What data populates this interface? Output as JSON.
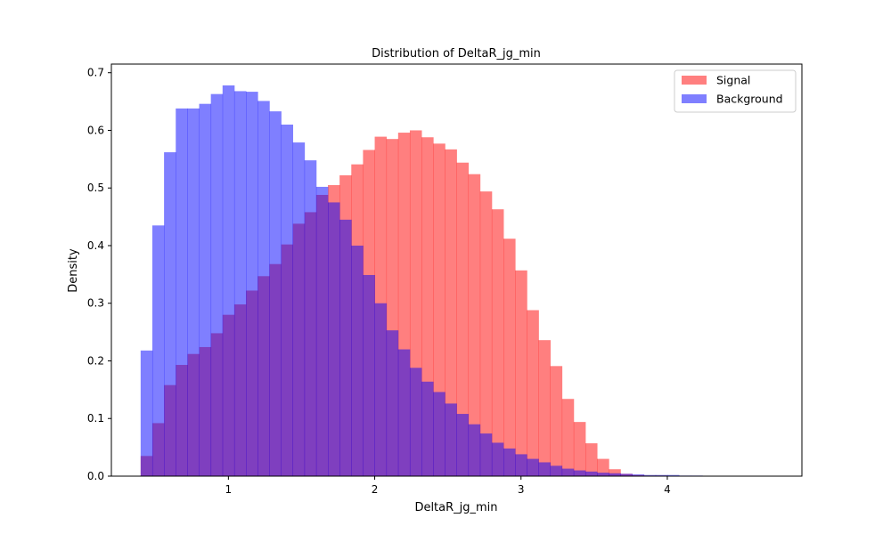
{
  "chart_data": {
    "type": "histogram",
    "title": "Distribution of DeltaR_jg_min",
    "xlabel": "DeltaR_jg_min",
    "ylabel": "Density",
    "xlim": [
      0.2,
      4.92
    ],
    "ylim": [
      0,
      0.715
    ],
    "x_ticks": [
      1,
      2,
      3,
      4
    ],
    "y_ticks": [
      0.0,
      0.1,
      0.2,
      0.3,
      0.4,
      0.5,
      0.6,
      0.7
    ],
    "legend_position": "top-right",
    "bin_start": 0.4,
    "bin_width": 0.08,
    "series": [
      {
        "name": "Signal",
        "color": "#ff0000",
        "alpha": 0.5,
        "values": [
          0.035,
          0.092,
          0.158,
          0.193,
          0.212,
          0.224,
          0.248,
          0.28,
          0.298,
          0.322,
          0.347,
          0.368,
          0.402,
          0.438,
          0.458,
          0.488,
          0.505,
          0.522,
          0.541,
          0.566,
          0.589,
          0.585,
          0.596,
          0.6,
          0.588,
          0.577,
          0.567,
          0.544,
          0.524,
          0.494,
          0.463,
          0.412,
          0.357,
          0.288,
          0.236,
          0.191,
          0.134,
          0.094,
          0.057,
          0.03,
          0.012,
          0.004,
          0.002,
          0.001,
          0.001,
          0.0,
          0.0,
          0.0,
          0.0,
          0.0,
          0.0,
          0.0,
          0.0,
          0.0,
          0.0,
          0.0,
          0.0,
          0.0
        ]
      },
      {
        "name": "Background",
        "color": "#0000ff",
        "alpha": 0.5,
        "values": [
          0.218,
          0.435,
          0.562,
          0.638,
          0.638,
          0.646,
          0.663,
          0.678,
          0.668,
          0.667,
          0.651,
          0.633,
          0.61,
          0.579,
          0.548,
          0.502,
          0.475,
          0.445,
          0.4,
          0.349,
          0.3,
          0.253,
          0.22,
          0.188,
          0.164,
          0.146,
          0.126,
          0.108,
          0.09,
          0.074,
          0.058,
          0.048,
          0.038,
          0.03,
          0.024,
          0.018,
          0.013,
          0.01,
          0.008,
          0.006,
          0.005,
          0.004,
          0.003,
          0.002,
          0.002,
          0.002,
          0.001,
          0.001,
          0.0,
          0.0,
          0.0,
          0.0,
          0.0,
          0.0,
          0.0,
          0.0,
          0.0,
          0.0
        ]
      }
    ]
  }
}
